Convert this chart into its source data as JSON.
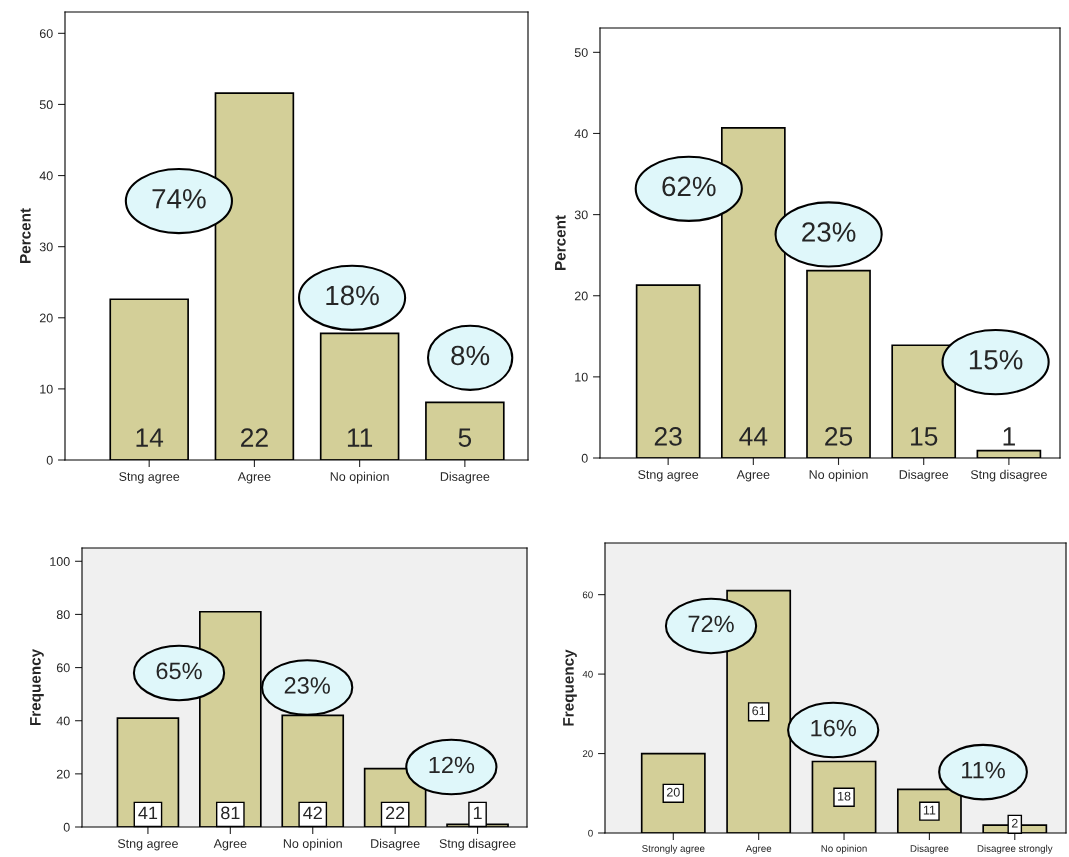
{
  "chart_data": [
    {
      "type": "bar",
      "ylabel": "Percent",
      "categories": [
        "Stng agree",
        "Agree",
        "No opinion",
        "Disagree"
      ],
      "values": [
        22.6,
        51.6,
        17.8,
        8.1
      ],
      "color": "#d3cf98",
      "ylim": [
        0,
        63
      ],
      "yticks": [
        0,
        10,
        20,
        30,
        40,
        50,
        60
      ],
      "grid": false,
      "legend": false,
      "annotations": [
        "14",
        "22",
        "11",
        "5",
        "74%",
        "18%",
        "8%"
      ]
    },
    {
      "type": "bar",
      "ylabel": "Percent",
      "categories": [
        "Stng agree",
        "Agree",
        "No opinion",
        "Disagree",
        "Stng disagree"
      ],
      "values": [
        21.3,
        40.7,
        23.1,
        13.9,
        0.9
      ],
      "color": "#d3cf98",
      "ylim": [
        0,
        53
      ],
      "yticks": [
        0,
        10,
        20,
        30,
        40,
        50
      ],
      "grid": false,
      "legend": false,
      "annotations": [
        "23",
        "44",
        "25",
        "15",
        "1",
        "62%",
        "23%",
        "15%"
      ]
    },
    {
      "type": "bar",
      "ylabel": "Frequency",
      "categories": [
        "Stng agree",
        "Agree",
        "No opinion",
        "Disagree",
        "Stng disagree"
      ],
      "values": [
        41,
        81,
        42,
        22,
        1
      ],
      "color": "#d3cf98",
      "data_labels": true,
      "ylim": [
        0,
        105
      ],
      "yticks": [
        0,
        20,
        40,
        60,
        80,
        100
      ],
      "grid": false,
      "legend": false,
      "annotations": [
        "65%",
        "23%",
        "12%"
      ]
    },
    {
      "type": "bar",
      "ylabel": "Frequency",
      "categories": [
        "Strongly agree",
        "Agree",
        "No opinion",
        "Disagree",
        "Disagree strongly"
      ],
      "values": [
        20,
        61,
        18,
        11,
        2
      ],
      "color": "#d3cf98",
      "data_labels": true,
      "ylim": [
        0,
        73
      ],
      "yticks": [
        0,
        20,
        40,
        60
      ],
      "grid": false,
      "legend": false,
      "annotations": [
        "72%",
        "16%",
        "11%"
      ]
    }
  ]
}
